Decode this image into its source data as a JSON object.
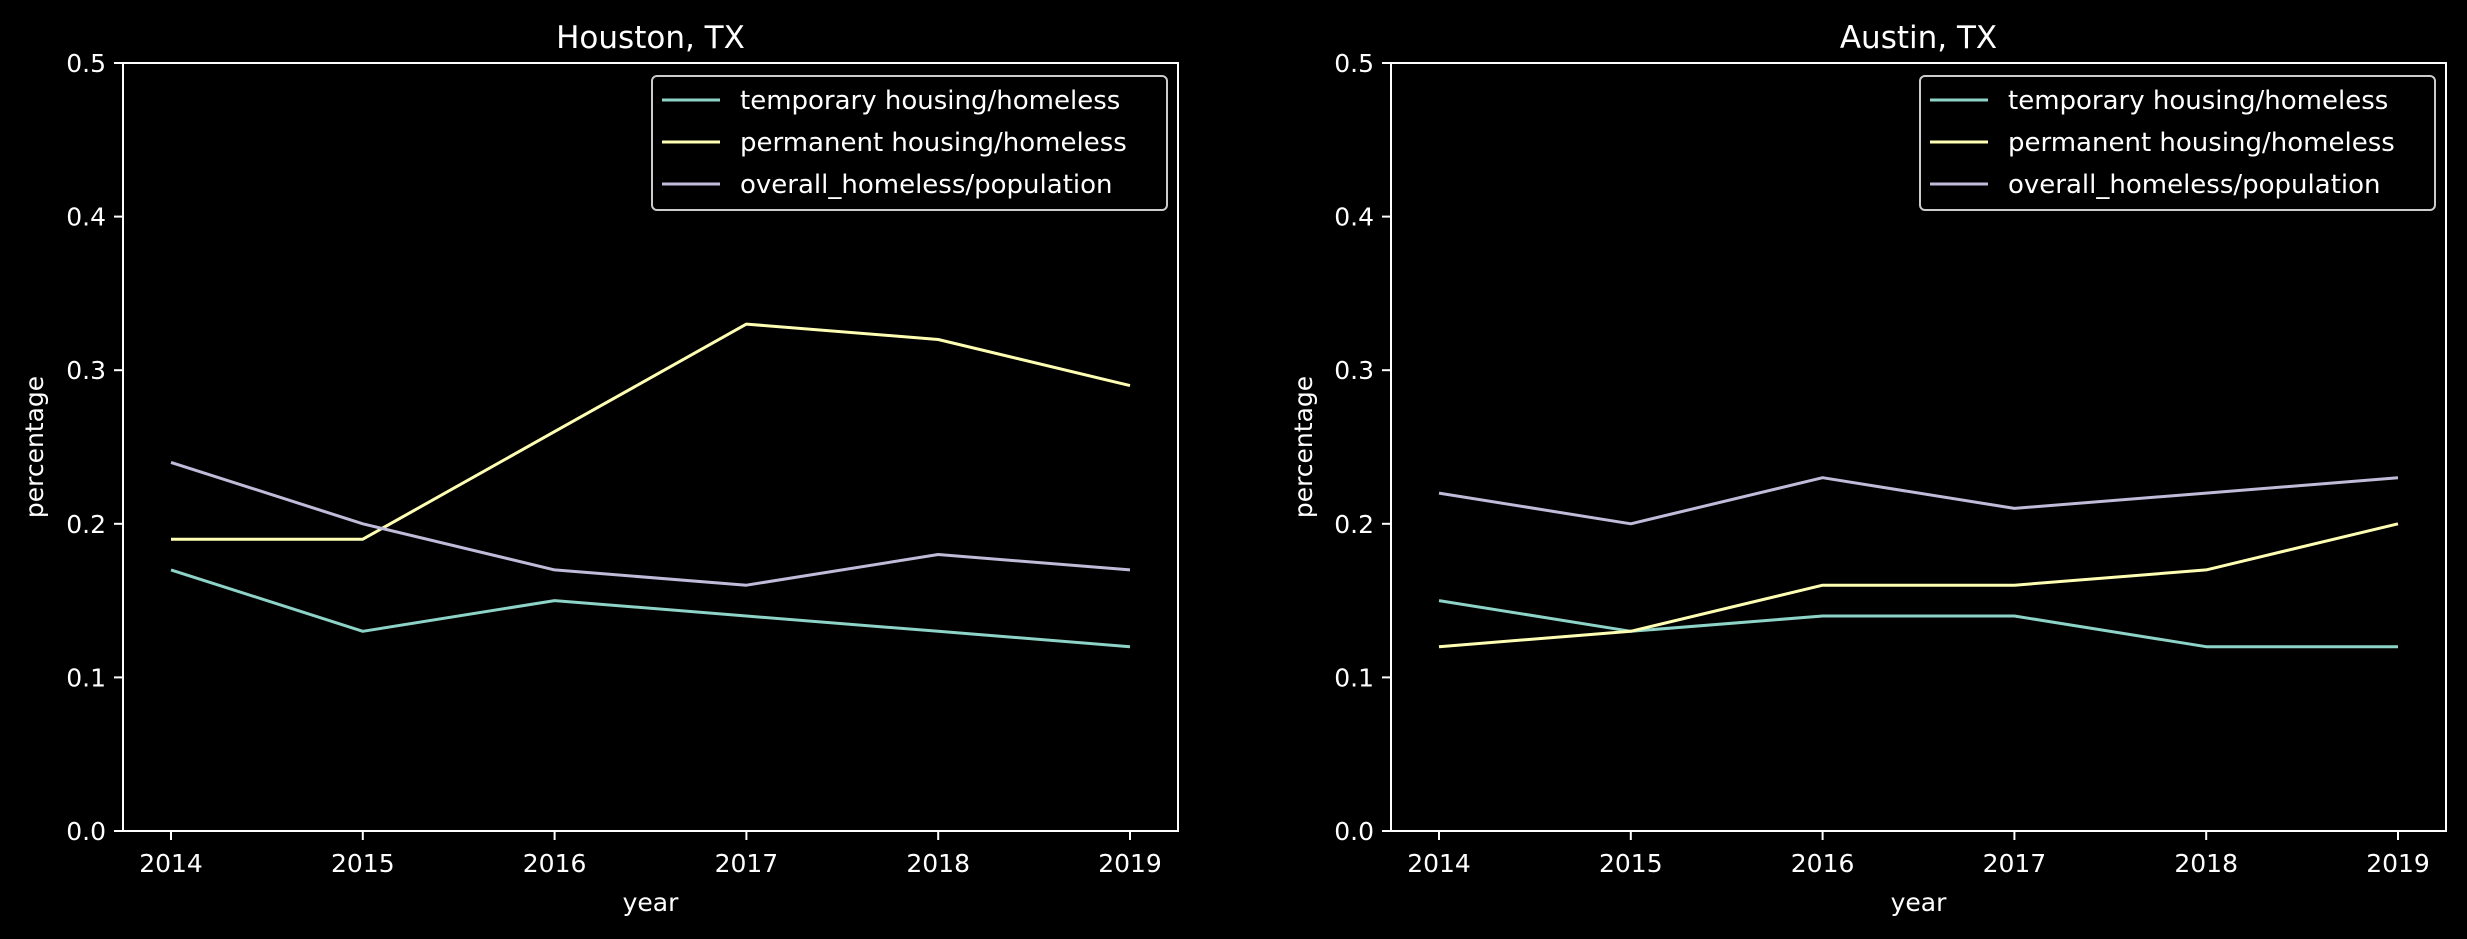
{
  "chart_data": [
    {
      "type": "line",
      "title": "Houston, TX",
      "xlabel": "year",
      "ylabel": "percentage",
      "x": [
        2014,
        2015,
        2016,
        2017,
        2018,
        2019
      ],
      "ylim": [
        0,
        0.5
      ],
      "yticks": [
        "0.0",
        "0.1",
        "0.2",
        "0.3",
        "0.4",
        "0.5"
      ],
      "xticks": [
        "2014",
        "2015",
        "2016",
        "2017",
        "2018",
        "2019"
      ],
      "legend_position": "top-right",
      "grid": false,
      "series": [
        {
          "name": "temporary housing/homeless",
          "color": "#8dd3c7",
          "values": [
            0.17,
            0.13,
            0.15,
            0.14,
            0.13,
            0.12
          ]
        },
        {
          "name": "permanent housing/homeless",
          "color": "#feffb3",
          "values": [
            0.19,
            0.19,
            0.26,
            0.33,
            0.32,
            0.29
          ]
        },
        {
          "name": "overall_homeless/population",
          "color": "#bfbbd9",
          "values": [
            0.24,
            0.2,
            0.17,
            0.16,
            0.18,
            0.17
          ]
        }
      ]
    },
    {
      "type": "line",
      "title": "Austin, TX",
      "xlabel": "year",
      "ylabel": "percentage",
      "x": [
        2014,
        2015,
        2016,
        2017,
        2018,
        2019
      ],
      "ylim": [
        0,
        0.5
      ],
      "yticks": [
        "0.0",
        "0.1",
        "0.2",
        "0.3",
        "0.4",
        "0.5"
      ],
      "xticks": [
        "2014",
        "2015",
        "2016",
        "2017",
        "2018",
        "2019"
      ],
      "legend_position": "top-right",
      "grid": false,
      "series": [
        {
          "name": "temporary housing/homeless",
          "color": "#8dd3c7",
          "values": [
            0.15,
            0.13,
            0.14,
            0.14,
            0.12,
            0.12
          ]
        },
        {
          "name": "permanent housing/homeless",
          "color": "#feffb3",
          "values": [
            0.12,
            0.13,
            0.16,
            0.16,
            0.17,
            0.2
          ]
        },
        {
          "name": "overall_homeless/population",
          "color": "#bfbbd9",
          "values": [
            0.22,
            0.2,
            0.23,
            0.21,
            0.22,
            0.23
          ]
        }
      ]
    }
  ]
}
